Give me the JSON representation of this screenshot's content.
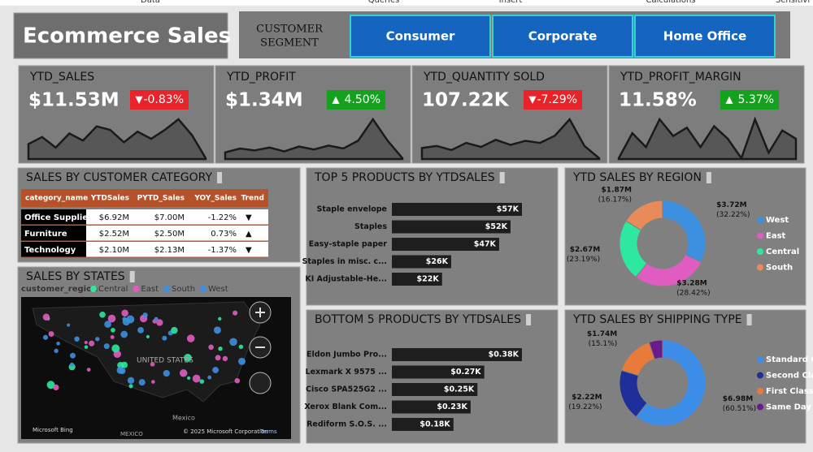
{
  "ribbon": [
    "Data",
    "Queries",
    "Insert",
    "Calculations",
    "Sensitivi"
  ],
  "header": {
    "title": "Ecommerce Sales",
    "segment_label": [
      "CUSTOMER",
      "SEGMENT"
    ],
    "segments": [
      "Consumer",
      "Corporate",
      "Home Office"
    ]
  },
  "kpis": [
    {
      "label": "YTD_SALES",
      "value": "$11.53M",
      "arrow": "▼",
      "change": "-0.83%",
      "color": "#e8242a",
      "sparkline": [
        30,
        34,
        28,
        36,
        32,
        40,
        38,
        31,
        37,
        33,
        38,
        44,
        35,
        22
      ]
    },
    {
      "label": "YTD_PROFIT",
      "value": "$1.34M",
      "arrow": "▲",
      "change": "4.50%",
      "color": "#14a11d",
      "sparkline": [
        18,
        22,
        20,
        23,
        19,
        24,
        21,
        25,
        22,
        30,
        52,
        30,
        12
      ]
    },
    {
      "label": "YTD_QUANTITY SOLD",
      "value": "107.22K",
      "arrow": "▼",
      "change": "-7.29%",
      "color": "#e8242a",
      "sparkline": [
        28,
        30,
        26,
        33,
        29,
        36,
        31,
        35,
        33,
        40,
        56,
        30,
        18
      ]
    },
    {
      "label": "YTD_PROFIT_MARGIN",
      "value": "11.58%",
      "arrow": "▲",
      "change": "5.37%",
      "color": "#14a11d",
      "sparkline": [
        22,
        40,
        30,
        50,
        38,
        44,
        30,
        45,
        36,
        22,
        50,
        26,
        42,
        36
      ]
    }
  ],
  "table": {
    "title": "SALES BY CUSTOMER CATEGORY",
    "columns": [
      "category_name",
      "YTDSales",
      "PYTD_Sales",
      "YOY_Sales",
      "Trend"
    ],
    "rows": [
      [
        "Office Supplies",
        "$6.92M",
        "$7.00M",
        "-1.22%",
        "▼"
      ],
      [
        "Furniture",
        "$2.52M",
        "$2.50M",
        "0.73%",
        "▲"
      ],
      [
        "Technology",
        "$2.10M",
        "$2.13M",
        "-1.37%",
        "▼"
      ]
    ]
  },
  "map": {
    "title": "SALES BY STATES",
    "legend_title": "customer_region",
    "legend": [
      {
        "name": "Central",
        "color": "#2ee8a0"
      },
      {
        "name": "East",
        "color": "#e05cc0"
      },
      {
        "name": "South",
        "color": "#3d8fe0"
      },
      {
        "name": "West",
        "color": "#3d8fe0"
      }
    ],
    "labels": [
      "UNITED STATES",
      "MEXICO",
      "Mexico",
      "Microsoft Bing",
      "© 2025 Microsoft Corporation",
      "Terms"
    ]
  },
  "chart_data": [
    {
      "type": "bar",
      "title": "TOP 5 PRODUCTS BY YTDSALES",
      "categories": [
        "Staple envelope",
        "Staples",
        "Easy-staple paper",
        "Staples in misc. c...",
        "KI Adjustable-He..."
      ],
      "values": [
        57,
        52,
        47,
        26,
        22
      ],
      "value_labels": [
        "$57K",
        "$52K",
        "$47K",
        "$26K",
        "$22K"
      ],
      "color": "#1e1e1e"
    },
    {
      "type": "bar",
      "title": "BOTTOM 5 PRODUCTS BY YTDSALES",
      "categories": [
        "Eldon Jumbo Pro...",
        "Lexmark X 9575 ...",
        "Cisco SPA525G2 ...",
        "Xerox Blank Com...",
        "Rediform S.O.S. ..."
      ],
      "values": [
        0.38,
        0.27,
        0.25,
        0.23,
        0.18
      ],
      "value_labels": [
        "$0.38K",
        "$0.27K",
        "$0.25K",
        "$0.23K",
        "$0.18K"
      ],
      "color": "#1e1e1e"
    },
    {
      "type": "donut",
      "title": "YTD SALES BY REGION",
      "categories": [
        "West",
        "East",
        "Central",
        "South"
      ],
      "values": [
        3.72,
        3.28,
        2.67,
        1.87
      ],
      "value_labels": [
        "$3.72M",
        "$3.28M",
        "$2.67M",
        "$1.87M"
      ],
      "percent_labels": [
        "(32.22%)",
        "(28.42%)",
        "(23.19%)",
        "(16.17%)"
      ],
      "colors": [
        "#3d8fe0",
        "#e05cc0",
        "#2ee8a0",
        "#e88a5a"
      ]
    },
    {
      "type": "donut",
      "title": "YTD SALES BY SHIPPING TYPE",
      "categories": [
        "Standard Cl...",
        "Second Class",
        "First Class",
        "Same Day"
      ],
      "values": [
        6.98,
        2.22,
        1.74,
        0.59
      ],
      "value_labels": [
        "$6.98M",
        "$2.22M",
        "$1.74M",
        null
      ],
      "percent_labels": [
        "(60.51%)",
        "(19.22%)",
        "(15.1%)",
        null
      ],
      "colors": [
        "#3b8de8",
        "#1f2f9a",
        "#e87a3a",
        "#6a1a8a"
      ]
    }
  ]
}
